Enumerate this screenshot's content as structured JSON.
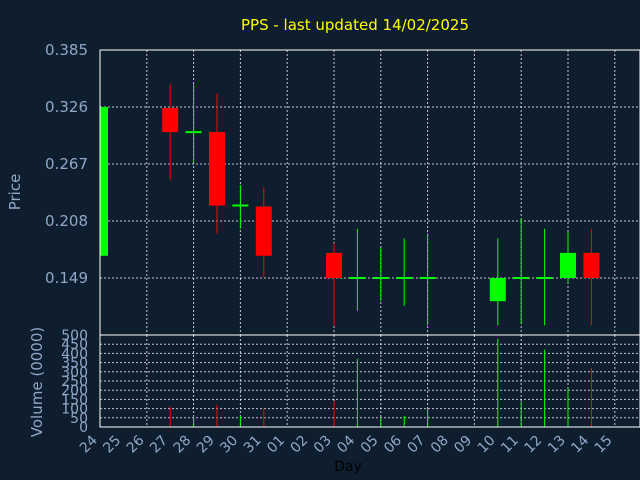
{
  "chart_data": {
    "type": "candlestick",
    "title": "PPS - last updated 14/02/2025",
    "xlabel": "Day",
    "price_panel": {
      "ylabel": "Price",
      "ylim": [
        0.09,
        0.385
      ],
      "yticks": [
        "0.385",
        "0.326",
        "0.267",
        "0.208",
        "0.149"
      ],
      "grid": true
    },
    "volume_panel": {
      "ylabel": "Volume (0000)",
      "ylim": [
        0,
        500
      ],
      "yticks": [
        "500",
        "450",
        "400",
        "350",
        "300",
        "250",
        "200",
        "150",
        "100",
        "50",
        "0"
      ],
      "grid": true
    },
    "x_ticks": [
      "24",
      "25",
      "26",
      "27",
      "28",
      "29",
      "30",
      "31",
      "01",
      "02",
      "03",
      "04",
      "05",
      "06",
      "07",
      "08",
      "09",
      "10",
      "11",
      "12",
      "13",
      "14",
      "15"
    ],
    "candles": [
      {
        "day": "24",
        "open": 0.172,
        "high": 0.326,
        "low": 0.172,
        "close": 0.326,
        "volume": 0
      },
      {
        "day": "27",
        "open": 0.325,
        "high": 0.35,
        "low": 0.25,
        "close": 0.3,
        "volume": 110
      },
      {
        "day": "28",
        "open": 0.3,
        "high": 0.35,
        "low": 0.268,
        "close": 0.3,
        "volume": 60
      },
      {
        "day": "29",
        "open": 0.3,
        "high": 0.34,
        "low": 0.195,
        "close": 0.224,
        "volume": 120
      },
      {
        "day": "30",
        "open": 0.224,
        "high": 0.245,
        "low": 0.2,
        "close": 0.224,
        "volume": 60
      },
      {
        "day": "31",
        "open": 0.223,
        "high": 0.243,
        "low": 0.15,
        "close": 0.172,
        "volume": 100
      },
      {
        "day": "03",
        "open": 0.175,
        "high": 0.185,
        "low": 0.1,
        "close": 0.149,
        "volume": 140
      },
      {
        "day": "04",
        "open": 0.149,
        "high": 0.2,
        "low": 0.115,
        "close": 0.149,
        "volume": 370
      },
      {
        "day": "05",
        "open": 0.149,
        "high": 0.18,
        "low": 0.125,
        "close": 0.149,
        "volume": 50
      },
      {
        "day": "06",
        "open": 0.149,
        "high": 0.19,
        "low": 0.12,
        "close": 0.149,
        "volume": 60
      },
      {
        "day": "07",
        "open": 0.149,
        "high": 0.195,
        "low": 0.1,
        "close": 0.149,
        "volume": 100
      },
      {
        "day": "10",
        "open": 0.125,
        "high": 0.19,
        "low": 0.1,
        "close": 0.149,
        "volume": 480
      },
      {
        "day": "11",
        "open": 0.149,
        "high": 0.21,
        "low": 0.102,
        "close": 0.149,
        "volume": 140
      },
      {
        "day": "12",
        "open": 0.149,
        "high": 0.2,
        "low": 0.1,
        "close": 0.149,
        "volume": 420
      },
      {
        "day": "13",
        "open": 0.149,
        "high": 0.197,
        "low": 0.144,
        "close": 0.175,
        "volume": 210
      },
      {
        "day": "14",
        "open": 0.175,
        "high": 0.2,
        "low": 0.1,
        "close": 0.149,
        "volume": 320
      }
    ],
    "colors": {
      "up": "#00ff00",
      "down": "#ff0000",
      "background": "#0f1e2e",
      "grid": "#ffffff",
      "text": "#8fa8c8",
      "title": "#ffff00",
      "xlabel": "#000000"
    }
  }
}
